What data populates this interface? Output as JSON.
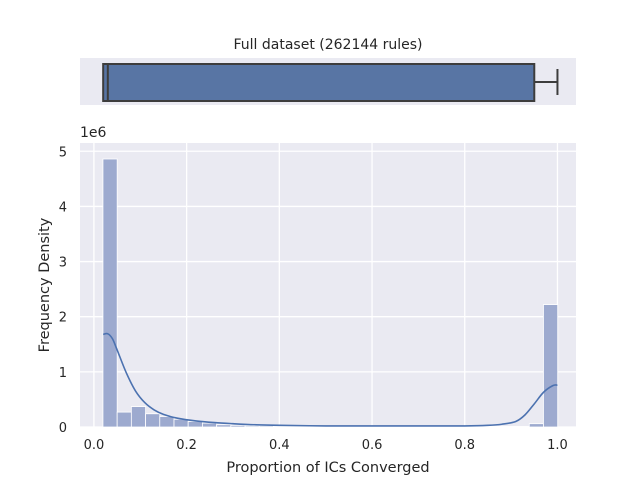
{
  "chart_data": [
    {
      "type": "box",
      "title": "Full dataset (262144 rules)",
      "xlim": [
        -0.03,
        1.04
      ],
      "box": {
        "min": 0.02,
        "q1": 0.02,
        "median": 0.03,
        "q3": 0.95,
        "max": 1.0
      },
      "colors": {
        "fill": "#5875a4",
        "edge": "#3d3d3d",
        "background": "#eaeaf2"
      }
    },
    {
      "type": "histogram",
      "xlabel": "Proportion of ICs Converged",
      "ylabel": "Frequency Density",
      "scale_label": "1e6",
      "xlim": [
        -0.03,
        1.04
      ],
      "ylim": [
        0,
        5.15
      ],
      "xticks": [
        "0.0",
        "0.2",
        "0.4",
        "0.6",
        "0.8",
        "1.0"
      ],
      "yticks": [
        "0",
        "1",
        "2",
        "3",
        "4",
        "5"
      ],
      "bin_edges": [
        0.0195,
        0.0502,
        0.0808,
        0.1115,
        0.1421,
        0.1728,
        0.2034,
        0.2341,
        0.2648,
        0.2954,
        0.3261,
        0.3567,
        0.3874,
        0.418,
        0.4487,
        0.4793,
        0.51,
        0.5407,
        0.5713,
        0.602,
        0.6326,
        0.6633,
        0.6939,
        0.7246,
        0.7552,
        0.7859,
        0.8166,
        0.8472,
        0.8779,
        0.9085,
        0.9392,
        0.9698,
        1.0005
      ],
      "values": [
        4.86,
        0.27,
        0.37,
        0.24,
        0.19,
        0.14,
        0.1,
        0.07,
        0.04,
        0.03,
        0.02,
        0.02,
        0.01,
        0.01,
        0.01,
        0.01,
        0.01,
        0.01,
        0.01,
        0.01,
        0.01,
        0.01,
        0.01,
        0.01,
        0.01,
        0.01,
        0.01,
        0.01,
        0.01,
        0.01,
        0.06,
        2.22
      ],
      "kde": {
        "x": [
          0.02,
          0.03,
          0.04,
          0.05,
          0.07,
          0.09,
          0.11,
          0.13,
          0.15,
          0.18,
          0.22,
          0.26,
          0.3,
          0.35,
          0.4,
          0.5,
          0.6,
          0.7,
          0.8,
          0.85,
          0.88,
          0.91,
          0.93,
          0.95,
          0.97,
          0.99,
          1.0
        ],
        "y": [
          1.68,
          1.69,
          1.6,
          1.4,
          0.98,
          0.65,
          0.44,
          0.31,
          0.23,
          0.16,
          0.11,
          0.08,
          0.06,
          0.04,
          0.03,
          0.02,
          0.02,
          0.02,
          0.02,
          0.03,
          0.05,
          0.1,
          0.22,
          0.42,
          0.63,
          0.75,
          0.76
        ]
      },
      "colors": {
        "bar": "#9daacf",
        "bar_edge": "#ffffff",
        "kde": "#4c72b0",
        "background": "#eaeaf2",
        "grid": "#ffffff"
      }
    }
  ]
}
